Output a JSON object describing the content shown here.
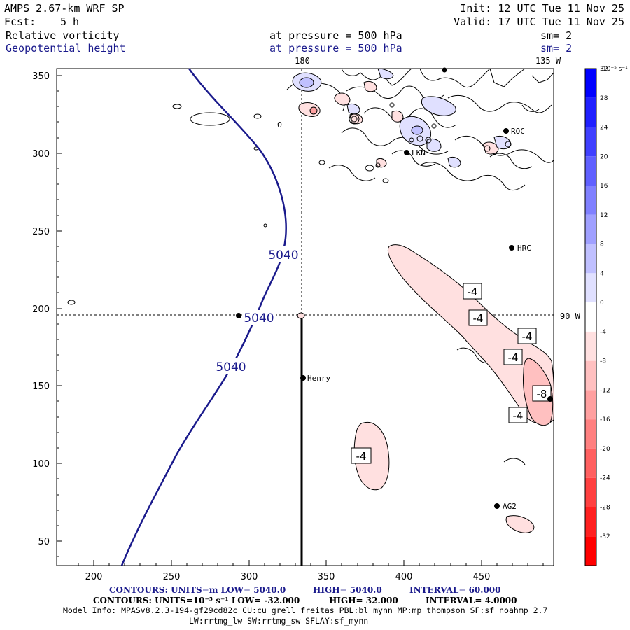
{
  "header": {
    "model": "AMPS 2.67-km WRF SP",
    "fcst_label": "Fcst:",
    "fcst_value": "5 h",
    "init": "Init: 12 UTC Tue 11 Nov 25",
    "valid": "Valid: 17 UTC Tue 11 Nov 25",
    "field1": "Relative vorticity",
    "field2": "Geopotential height",
    "pressure1": "at pressure =  500 hPa",
    "pressure2": "at pressure =  500 hPa",
    "smooth1": "sm= 2",
    "smooth2": "sm= 2"
  },
  "map": {
    "x_ticks": [
      "200",
      "250",
      "300",
      "350",
      "400",
      "450"
    ],
    "y_ticks": [
      "350",
      "300",
      "250",
      "200",
      "150",
      "100",
      "50"
    ],
    "lon_180": "180",
    "lon_135w": "135 W",
    "lon_90w": "90 W",
    "height_labels": [
      "5040",
      "5040",
      "5040"
    ],
    "vort_labels": [
      "-4",
      "-4",
      "-4",
      "-4",
      "-8",
      "-4",
      "-4"
    ],
    "stations": [
      "HRC",
      "Henry",
      "AG2",
      "ROC",
      "LKN"
    ],
    "zero_label": "0"
  },
  "colorbar": {
    "unit": "10⁻⁵ s⁻¹",
    "labels": [
      "32",
      "28",
      "24",
      "20",
      "16",
      "12",
      "8",
      "4",
      "0",
      "-4",
      "-8",
      "-12",
      "-16",
      "-20",
      "-24",
      "-28",
      "-32"
    ],
    "colors": [
      "#0000ff",
      "#2020ff",
      "#4040ff",
      "#6060ff",
      "#8080ff",
      "#a0a0ff",
      "#c0c0ff",
      "#e0e0ff",
      "#ffffff",
      "#ffe0e0",
      "#ffc0c0",
      "#ffa0a0",
      "#ff8080",
      "#ff6060",
      "#ff4040",
      "#ff2020",
      "#ff0000"
    ]
  },
  "footer": {
    "line1_a": "CONTOURS:  UNITS=m  LOW=  5040.0",
    "line1_b": "HIGH=  5040.0",
    "line1_c": "INTERVAL=   60.000",
    "line2_a": "CONTOURS:  UNITS=10⁻⁵ s⁻¹  LOW=  -32.000",
    "line2_b": "HIGH=   32.000",
    "line2_c": "INTERVAL=   4.0000",
    "model_info": "Model Info: MPASv8.2.3-194-gf29cd82c CU:cu_grell_freitas PBL:bl_mynn MP:mp_thompson SF:sf_noahmp 2.7",
    "physics": "LW:rrtmg_lw SW:rrtmg_sw SFLAY:sf_mynn"
  }
}
